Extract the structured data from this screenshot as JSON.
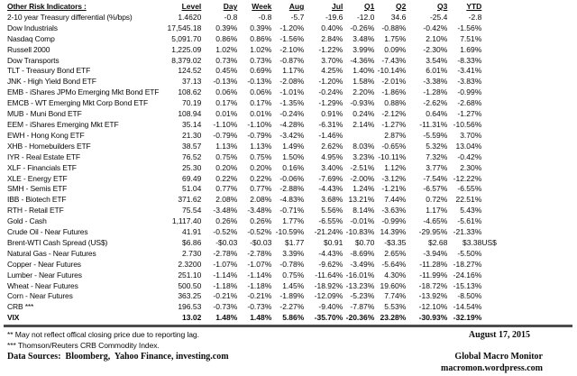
{
  "colors": {
    "text": "#0b0b0b",
    "rule": "#4d4d4d",
    "background": "#ffffff"
  },
  "table": {
    "title": "Other Risk Indicators :",
    "columns": [
      "Level",
      "Day",
      "Week",
      "Aug",
      "Jul",
      "Q1",
      "Q2",
      "Q3",
      "YTD"
    ],
    "rows": [
      {
        "label": "2-10 year Treasury differential (%/bps)",
        "values": [
          "1.4620",
          "-0.8",
          "-0.8",
          "-5.7",
          "-19.6",
          "-12.0",
          "34.6",
          "-25.4",
          "-2.8"
        ],
        "note": ""
      },
      {
        "label": "Dow Industrials",
        "values": [
          "17,545.18",
          "0.39%",
          "0.39%",
          "-1.20%",
          "0.40%",
          "-0.26%",
          "-0.88%",
          "-0.42%",
          "-1.56%"
        ],
        "note": ""
      },
      {
        "label": "Nasdaq Comp",
        "values": [
          "5,091.70",
          "0.86%",
          "0.86%",
          "-1.56%",
          "2.84%",
          "3.48%",
          "1.75%",
          "2.10%",
          "7.51%"
        ],
        "note": ""
      },
      {
        "label": "Russell 2000",
        "values": [
          "1,225.09",
          "1.02%",
          "1.02%",
          "-2.10%",
          "-1.22%",
          "3.99%",
          "0.09%",
          "-2.30%",
          "1.69%"
        ],
        "note": ""
      },
      {
        "label": "Dow Transports",
        "values": [
          "8,379.02",
          "0.73%",
          "0.73%",
          "-0.87%",
          "3.70%",
          "-4.36%",
          "-7.43%",
          "3.54%",
          "-8.33%"
        ],
        "note": ""
      },
      {
        "label": "TLT - Treasury Bond ETF",
        "values": [
          "124.52",
          "0.45%",
          "0.69%",
          "1.17%",
          "4.25%",
          "1.40%",
          "-10.14%",
          "6.01%",
          "-3.41%"
        ],
        "note": ""
      },
      {
        "label": "JNK - High Yield Bond ETF",
        "values": [
          "37.13",
          "-0.13%",
          "-0.13%",
          "-2.08%",
          "-1.20%",
          "1.58%",
          "-2.01%",
          "-3.38%",
          "-3.83%"
        ],
        "note": ""
      },
      {
        "label": "EMB - iShares JPMo Emerging Mkt Bond ETF",
        "values": [
          "108.62",
          "0.06%",
          "0.06%",
          "-1.01%",
          "-0.24%",
          "2.20%",
          "-1.86%",
          "-1.28%",
          "-0.99%"
        ],
        "note": ""
      },
      {
        "label": "EMCB - WT Emerging Mkt Corp Bond ETF",
        "values": [
          "70.19",
          "0.17%",
          "0.17%",
          "-1.35%",
          "-1.29%",
          "-0.93%",
          "0.88%",
          "-2.62%",
          "-2.68%"
        ],
        "note": ""
      },
      {
        "label": "MUB - Muni Bond ETF",
        "values": [
          "108.94",
          "0.01%",
          "0.01%",
          "-0.24%",
          "0.91%",
          "0.24%",
          "-2.12%",
          "0.64%",
          "-1.27%"
        ],
        "note": ""
      },
      {
        "label": "EEM - iShares Emerging Mkt ETF",
        "values": [
          "35.14",
          "-1.10%",
          "-1.10%",
          "-4.28%",
          "-6.31%",
          "2.14%",
          "-1.27%",
          "-11.31%",
          "-10.56%"
        ],
        "note": ""
      },
      {
        "label": "EWH - Hong Kong ETF",
        "values": [
          "21.30",
          "-0.79%",
          "-0.79%",
          "-3.42%",
          "-1.46%",
          "",
          "2.87%",
          "-5.59%",
          "3.70%"
        ],
        "note": ""
      },
      {
        "label": "XHB - Homebuilders ETF",
        "values": [
          "38.57",
          "1.13%",
          "1.13%",
          "1.49%",
          "2.62%",
          "8.03%",
          "-0.65%",
          "5.32%",
          "13.04%"
        ],
        "note": ""
      },
      {
        "label": "IYR - Real Estate ETF",
        "values": [
          "76.52",
          "0.75%",
          "0.75%",
          "1.50%",
          "4.95%",
          "3.23%",
          "-10.11%",
          "7.32%",
          "-0.42%"
        ],
        "note": ""
      },
      {
        "label": "XLF - Financials ETF",
        "values": [
          "25.30",
          "0.20%",
          "0.20%",
          "0.16%",
          "3.40%",
          "-2.51%",
          "1.12%",
          "3.77%",
          "2.30%"
        ],
        "note": ""
      },
      {
        "label": "XLE - Energy ETF",
        "values": [
          "69.49",
          "0.22%",
          "0.22%",
          "-0.06%",
          "-7.69%",
          "-2.00%",
          "-3.12%",
          "-7.54%",
          "-12.22%"
        ],
        "note": ""
      },
      {
        "label": "SMH - Semis ETF",
        "values": [
          "51.04",
          "0.77%",
          "0.77%",
          "-2.88%",
          "-4.43%",
          "1.24%",
          "-1.21%",
          "-6.57%",
          "-6.55%"
        ],
        "note": ""
      },
      {
        "label": "IBB - Biotech ETF",
        "values": [
          "371.62",
          "2.08%",
          "2.08%",
          "-4.83%",
          "3.68%",
          "13.21%",
          "7.44%",
          "0.72%",
          "22.51%"
        ],
        "note": ""
      },
      {
        "label": "RTH - Retail ETF",
        "values": [
          "75.54",
          "-3.48%",
          "-3.48%",
          "-0.71%",
          "5.56%",
          "8.14%",
          "-3.63%",
          "1.17%",
          "5.43%"
        ],
        "note": ""
      },
      {
        "label": "Gold - Cash",
        "values": [
          "1,117.40",
          "0.26%",
          "0.26%",
          "1.77%",
          "-6.55%",
          "-0.01%",
          "-0.99%",
          "-4.65%",
          "-5.61%"
        ],
        "note": ""
      },
      {
        "label": "Crude Oil - Near Futures",
        "values": [
          "41.91",
          "-0.52%",
          "-0.52%",
          "-10.59%",
          "-21.24%",
          "-10.83%",
          "14.39%",
          "-29.95%",
          "-21.33%"
        ],
        "note": ""
      },
      {
        "label": "Brent-WTI Cash Spread (US$)",
        "values": [
          "$6.86",
          "-$0.03",
          "-$0.03",
          "$1.77",
          "$0.91",
          "$0.70",
          "-$3.35",
          "$2.68",
          "$3.38"
        ],
        "note": "US$"
      },
      {
        "label": "Natural Gas - Near Futures",
        "values": [
          "2.730",
          "-2.78%",
          "-2.78%",
          "3.39%",
          "-4.43%",
          "-8.69%",
          "2.65%",
          "-3.94%",
          "-5.50%"
        ],
        "note": ""
      },
      {
        "label": "Copper - Near Futures",
        "values": [
          "2.3200",
          "-1.07%",
          "-1.07%",
          "-0.78%",
          "-9.62%",
          "-3.49%",
          "-5.64%",
          "-11.28%",
          "-18.27%"
        ],
        "note": ""
      },
      {
        "label": "Lumber - Near Futures",
        "values": [
          "251.10",
          "-1.14%",
          "-1.14%",
          "0.75%",
          "-11.64%",
          "-16.01%",
          "4.30%",
          "-11.99%",
          "-24.16%"
        ],
        "note": ""
      },
      {
        "label": "Wheat - Near Futures",
        "values": [
          "500.50",
          "-1.18%",
          "-1.18%",
          "1.45%",
          "-18.92%",
          "-13.23%",
          "19.60%",
          "-18.72%",
          "-15.13%"
        ],
        "note": ""
      },
      {
        "label": "Corn - Near Futures",
        "values": [
          "363.25",
          "-0.21%",
          "-0.21%",
          "-1.89%",
          "-12.09%",
          "-5.23%",
          "7.74%",
          "-13.92%",
          "-8.50%"
        ],
        "note": ""
      },
      {
        "label": "CRB ***",
        "values": [
          "196.53",
          "-0.73%",
          "-0.73%",
          "-2.27%",
          "-9.40%",
          "-7.87%",
          "5.53%",
          "-12.10%",
          "-14.54%"
        ],
        "note": ""
      },
      {
        "label": "VIX",
        "values": [
          "13.02",
          "1.48%",
          "1.48%",
          "5.86%",
          "-35.70%",
          "-20.36%",
          "23.28%",
          "-30.93%",
          "-32.19%"
        ],
        "note": "",
        "bold": true
      }
    ]
  },
  "footer": {
    "footnote_1": "** May not reflect offical closing price due to reporting lag.",
    "footnote_2": "*** Thomson/Reuters CRB Commodity Index.",
    "data_sources": "Data Sources:  Bloomberg,  Yahoo Finance, investing.com",
    "date": "August 17, 2015",
    "site_name": "Global Macro Monitor",
    "site_url": "macromon.wordpress.com"
  }
}
